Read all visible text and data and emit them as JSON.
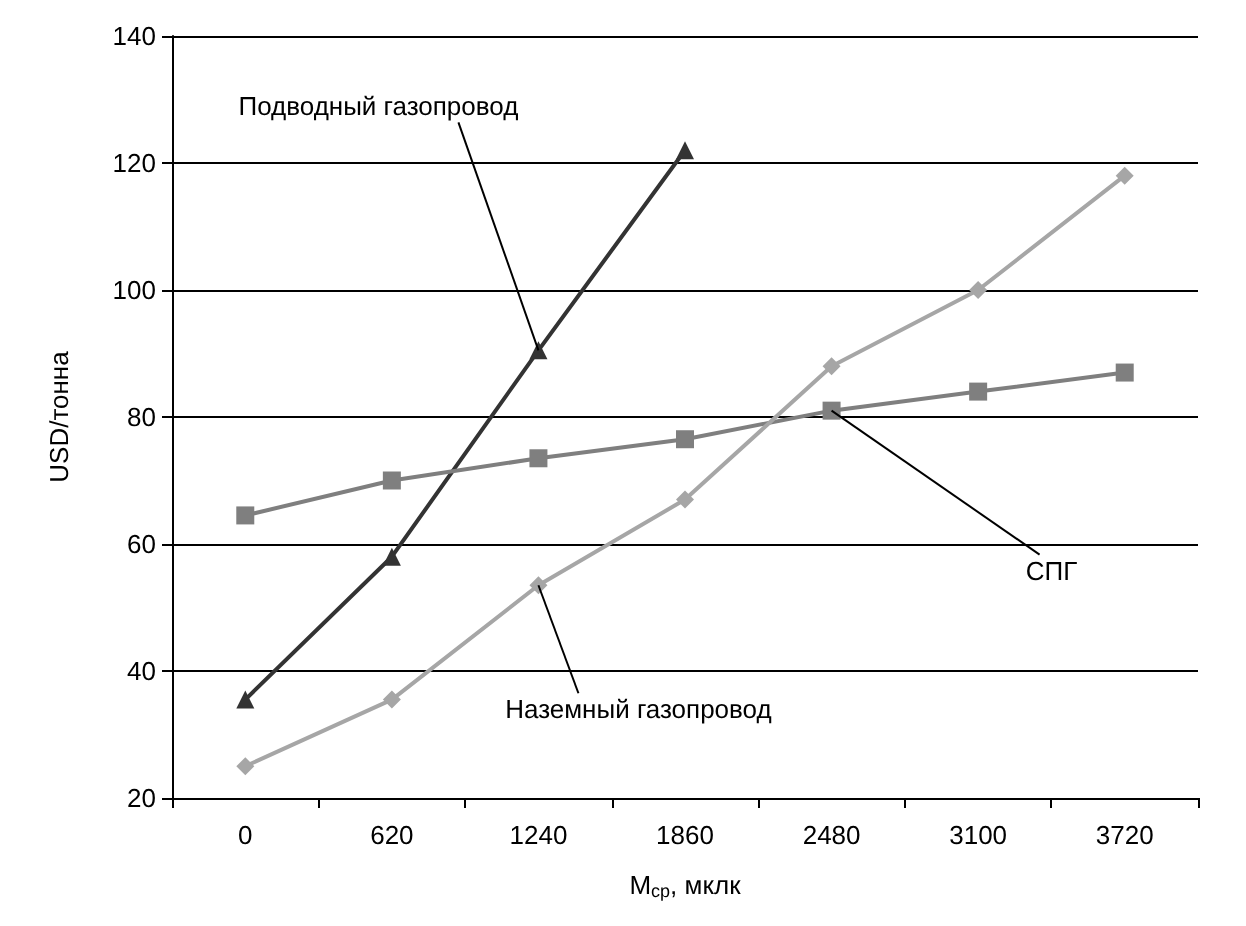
{
  "chart_data": {
    "type": "line",
    "xlabel": "M$_{ср}$, мклк",
    "ylabel": "USD/тонна",
    "categories": [
      "0",
      "620",
      "1240",
      "1860",
      "2480",
      "3100",
      "3720"
    ],
    "series": [
      {
        "color": "#333333",
        "marker": "triangle",
        "values": [
          35.5,
          58,
          90.5,
          122,
          null,
          null,
          null
        ]
      },
      {
        "color": "#7f7f7f",
        "marker": "square",
        "values": [
          64.5,
          70,
          73.5,
          76.5,
          81,
          84,
          87
        ]
      },
      {
        "color": "#a6a6a6",
        "marker": "diamond",
        "values": [
          25,
          35.5,
          53.5,
          67,
          88,
          100,
          118
        ]
      }
    ],
    "ylim": [
      20,
      140
    ],
    "yticks": [
      20,
      40,
      60,
      80,
      100,
      120,
      140
    ],
    "grid": "y",
    "line_style": "solid",
    "annotations": [
      {
        "text": "Подводный газопровод",
        "x": "1240",
        "y": 90.5
      },
      {
        "text": "СПГ",
        "x": "2480",
        "y": 81
      },
      {
        "text": "Наземный газопровод",
        "x": "1240",
        "y": 53.5
      }
    ]
  }
}
